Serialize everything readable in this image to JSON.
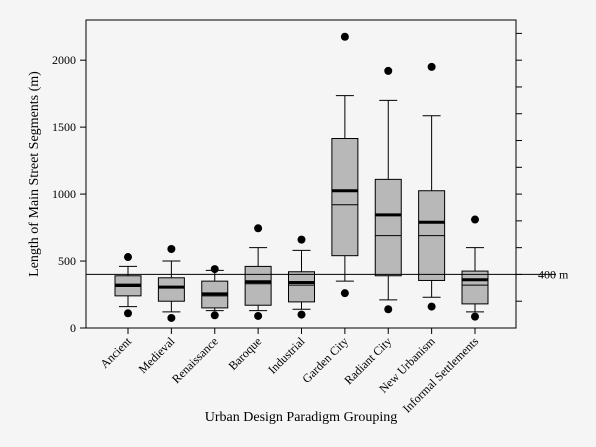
{
  "chart_data": {
    "type": "box",
    "title": "",
    "xlabel": "Urban Design Paradigm Grouping",
    "ylabel": "Length of Main Street Segments (m)",
    "ylim": [
      0,
      2300
    ],
    "y_ticks": [
      0,
      500,
      1000,
      1500,
      2000
    ],
    "reference_line": {
      "value": 400,
      "label": "400 m"
    },
    "categories": [
      "Ancient",
      "Medieval",
      "Renaissance",
      "Baroque",
      "Industrial",
      "Garden City",
      "Radiant City",
      "New Urbanism",
      "Informal Settlements"
    ],
    "boxes": [
      {
        "whisker_low": 160,
        "q1": 240,
        "median_line": 310,
        "mean": 320,
        "q3": 390,
        "whisker_high": 460,
        "outliers": [
          110,
          530
        ]
      },
      {
        "whisker_low": 120,
        "q1": 200,
        "median_line": 300,
        "mean": 305,
        "q3": 375,
        "whisker_high": 500,
        "outliers": [
          75,
          590
        ]
      },
      {
        "whisker_low": 130,
        "q1": 150,
        "median_line": 240,
        "mean": 255,
        "q3": 350,
        "whisker_high": 430,
        "outliers": [
          95,
          440
        ]
      },
      {
        "whisker_low": 130,
        "q1": 170,
        "median_line": 330,
        "mean": 345,
        "q3": 460,
        "whisker_high": 600,
        "outliers": [
          90,
          745
        ]
      },
      {
        "whisker_low": 140,
        "q1": 195,
        "median_line": 320,
        "mean": 340,
        "q3": 420,
        "whisker_high": 580,
        "outliers": [
          100,
          660
        ]
      },
      {
        "whisker_low": 350,
        "q1": 540,
        "median_line": 920,
        "mean": 1025,
        "q3": 1415,
        "whisker_high": 1735,
        "outliers": [
          260,
          2175
        ]
      },
      {
        "whisker_low": 210,
        "q1": 390,
        "median_line": 690,
        "mean": 845,
        "q3": 1110,
        "whisker_high": 1700,
        "outliers": [
          140,
          1920
        ]
      },
      {
        "whisker_low": 230,
        "q1": 355,
        "median_line": 690,
        "mean": 790,
        "q3": 1025,
        "whisker_high": 1585,
        "outliers": [
          160,
          1950
        ]
      },
      {
        "whisker_low": 120,
        "q1": 180,
        "median_line": 320,
        "mean": 360,
        "q3": 425,
        "whisker_high": 600,
        "outliers": [
          85,
          810
        ]
      }
    ],
    "colors": {
      "box_fill": "#b8b8b8",
      "line": "#000000",
      "background": "#f5f5f5"
    },
    "grid": false,
    "legend": "none"
  }
}
